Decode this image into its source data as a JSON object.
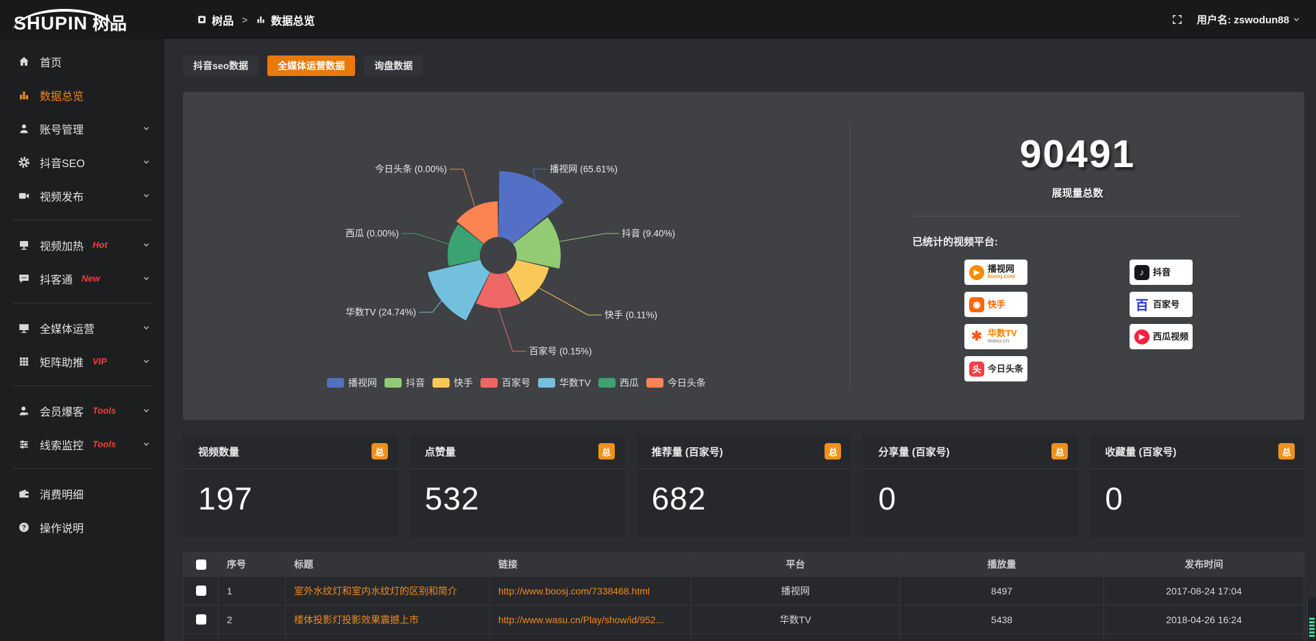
{
  "colors": {
    "accent_orange": "#e8790d",
    "badge_orange": "#f0911c",
    "link_orange": "#ee8a22",
    "hot_red": "#f23c3c",
    "panel_gray": "#3f4144",
    "card_dark": "#27282b",
    "page_bg": "#2b2c2f",
    "sidebar_bg": "#1d1e20",
    "topbar_bg": "#19191b"
  },
  "header": {
    "logo_en": "SHUPIN",
    "logo_cn": "树品",
    "breadcrumb": [
      "树品",
      "数据总览"
    ],
    "breadcrumb_sep": ">",
    "username": "用户名: zswodun88"
  },
  "sidebar": {
    "items": [
      {
        "key": "home",
        "label": "首页",
        "icon": "home"
      },
      {
        "key": "data-overview",
        "label": "数据总览",
        "icon": "chart",
        "active": true
      },
      {
        "key": "account-management",
        "label": "账号管理",
        "icon": "user",
        "chevron": true
      },
      {
        "key": "douyin-seo",
        "label": "抖音SEO",
        "icon": "gear",
        "chevron": true
      },
      {
        "key": "video-publish",
        "label": "视频发布",
        "icon": "video",
        "chevron": true,
        "divider_after": true
      },
      {
        "key": "video-heat",
        "label": "视频加热",
        "icon": "heat",
        "badge": "Hot",
        "chevron": true
      },
      {
        "key": "douketong",
        "label": "抖客通",
        "icon": "chat",
        "badge": "New",
        "chevron": true,
        "divider_after": true
      },
      {
        "key": "omnimedia-operation",
        "label": "全媒体运营",
        "icon": "monitor",
        "chevron": true
      },
      {
        "key": "matrix-boost",
        "label": "矩阵助推",
        "icon": "grid",
        "badge": "VIP",
        "chevron": true,
        "divider_after": true
      },
      {
        "key": "member-burst",
        "label": "会员爆客",
        "icon": "member",
        "badge": "Tools",
        "chevron": true
      },
      {
        "key": "clue-monitor",
        "label": "线索监控",
        "icon": "sliders",
        "badge": "Tools",
        "chevron": true,
        "divider_after": true
      },
      {
        "key": "consumption-detail",
        "label": "消费明细",
        "icon": "wallet"
      },
      {
        "key": "operation-guide",
        "label": "操作说明",
        "icon": "help"
      }
    ]
  },
  "tabs": [
    {
      "key": "douyin-seo-data",
      "label": "抖音seo数据",
      "active": false
    },
    {
      "key": "omnimedia-data",
      "label": "全媒体运营数据",
      "active": true
    },
    {
      "key": "inquiry-data",
      "label": "询盘数据",
      "active": false
    }
  ],
  "chart_data": {
    "type": "pie",
    "subtype": "rose",
    "unit": "%",
    "legend_position": "bottom",
    "items": [
      {
        "name": "播视网",
        "pct": 65.61,
        "label": "播视网 (65.61%)",
        "color": "#5470c6",
        "radius": 123,
        "label_pos": [
          535,
          113,
          "start"
        ]
      },
      {
        "name": "抖音",
        "pct": 9.4,
        "label": "抖音 (9.40%)",
        "color": "#91cc75",
        "radius": 91,
        "label_pos": [
          640,
          207,
          "start"
        ]
      },
      {
        "name": "快手",
        "pct": 0.11,
        "label": "快手 (0.11%)",
        "color": "#fac858",
        "radius": 76,
        "label_pos": [
          615,
          326,
          "start"
        ]
      },
      {
        "name": "百家号",
        "pct": 0.15,
        "label": "百家号 (0.15%)",
        "color": "#ee6666",
        "radius": 77,
        "label_pos": [
          505,
          379,
          "start"
        ]
      },
      {
        "name": "华数TV",
        "pct": 24.74,
        "label": "华数TV (24.74%)",
        "color": "#73c0de",
        "radius": 106,
        "label_pos": [
          340,
          322,
          "end"
        ]
      },
      {
        "name": "西瓜",
        "pct": 0.0,
        "label": "西瓜 (0.00%)",
        "color": "#3ba272",
        "radius": 74,
        "label_pos": [
          315,
          207,
          "end"
        ]
      },
      {
        "name": "今日头条",
        "pct": 0.0,
        "label": "今日头条 (0.00%)",
        "color": "#fc8452",
        "radius": 79,
        "label_pos": [
          385,
          113,
          "end"
        ]
      }
    ],
    "legend": [
      "播视网",
      "抖音",
      "快手",
      "百家号",
      "华数TV",
      "西瓜",
      "今日头条"
    ]
  },
  "summary": {
    "total_value": "90491",
    "total_label": "展现量总数",
    "platforms_label": "已统计的视频平台:",
    "platforms_left": [
      {
        "key": "boosj",
        "name": "播视网",
        "sub": "boosj.com",
        "name_color": "#222222",
        "sub_color": "#ff8a00",
        "icon": {
          "shape": "circle",
          "bg": "#ff8a00",
          "glyph": "▶",
          "color": "#ffffff"
        }
      },
      {
        "key": "kuaishou",
        "name": "快手",
        "sub": "",
        "name_color": "#ff6600",
        "sub_color": "",
        "icon": {
          "shape": "square",
          "bg": "#ff6600",
          "glyph": "◉",
          "color": "#ffffff"
        }
      },
      {
        "key": "wasu",
        "name": "华数TV",
        "sub": "wasu.cn",
        "name_color": "#ff7f00",
        "sub_color": "#9a9a9a",
        "icon": {
          "shape": "none",
          "bg": "transparent",
          "glyph": "✱",
          "color": "#ff5722"
        }
      },
      {
        "key": "toutiao",
        "name": "今日头条",
        "sub": "",
        "name_color": "#2b2b2b",
        "sub_color": "",
        "icon": {
          "shape": "square",
          "bg": "#f04142",
          "glyph": "头",
          "color": "#ffffff"
        }
      }
    ],
    "platforms_right": [
      {
        "key": "douyin",
        "name": "抖音",
        "sub": "",
        "name_color": "#111111",
        "sub_color": "",
        "icon": {
          "shape": "square",
          "bg": "#16161d",
          "glyph": "♪",
          "color": "#ffffff"
        }
      },
      {
        "key": "baijiahao",
        "name": "百家号",
        "sub": "",
        "name_color": "#222222",
        "sub_color": "",
        "icon": {
          "shape": "none",
          "bg": "transparent",
          "glyph": "百",
          "color": "#2932e1"
        }
      },
      {
        "key": "xigua",
        "name": "西瓜视频",
        "sub": "",
        "name_color": "#222222",
        "sub_color": "",
        "icon": {
          "shape": "circle",
          "bg": "#fa1f41",
          "glyph": "▶",
          "color": "#ffffff"
        }
      }
    ]
  },
  "stat_cards": [
    {
      "key": "video-count",
      "title": "视频数量",
      "badge": "总",
      "value": "197"
    },
    {
      "key": "like-count",
      "title": "点赞量",
      "badge": "总",
      "value": "532"
    },
    {
      "key": "recommend-count",
      "title": "推荐量 (百家号)",
      "badge": "总",
      "value": "682"
    },
    {
      "key": "share-count",
      "title": "分享量 (百家号)",
      "badge": "总",
      "value": "0"
    },
    {
      "key": "favorite-count",
      "title": "收藏量 (百家号)",
      "badge": "总",
      "value": "0"
    }
  ],
  "table": {
    "headers": [
      "",
      "序号",
      "标题",
      "链接",
      "平台",
      "播放量",
      "发布时间"
    ],
    "rows": [
      {
        "idx": "1",
        "title": "室外水纹灯和室内水纹灯的区别和简介",
        "link": "http://www.boosj.com/7338468.html",
        "platform": "播视网",
        "views": "8497",
        "time": "2017-08-24 17:04"
      },
      {
        "idx": "2",
        "title": "楼体投影灯投影效果震撼上市",
        "link": "http://www.wasu.cn/Play/show/id/952...",
        "platform": "华数TV",
        "views": "5438",
        "time": "2018-04-26 16:24"
      },
      {
        "idx": "",
        "title": "",
        "link": "",
        "platform": "",
        "views": "",
        "time": "",
        "partial": true
      }
    ]
  }
}
